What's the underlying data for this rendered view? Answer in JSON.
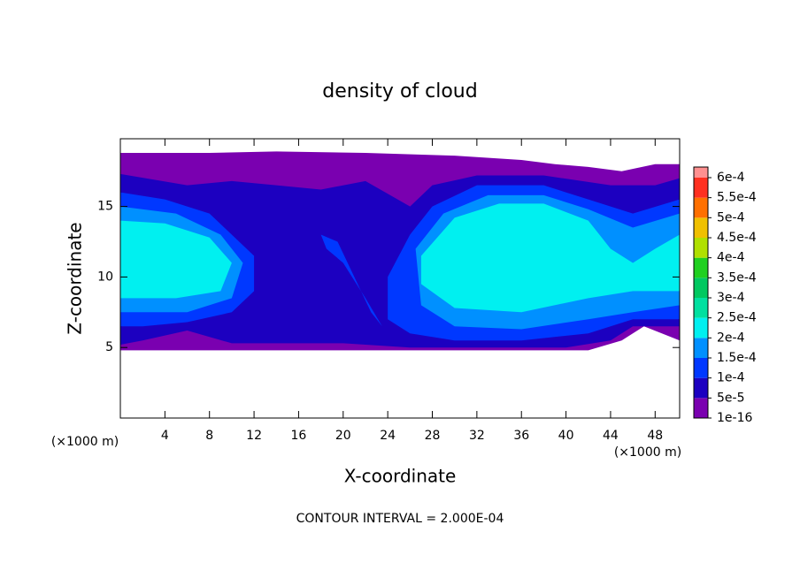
{
  "chart_data": {
    "type": "contour",
    "title": "density of cloud",
    "xlabel": "X-coordinate",
    "ylabel": "Z-coordinate",
    "x_unit_labels": [
      "(×1000 m)",
      "(×1000 m)"
    ],
    "footer": "CONTOUR INTERVAL = 2.000E-04",
    "xlim": [
      0,
      50.2
    ],
    "ylim": [
      0,
      19.8
    ],
    "xticks": [
      4,
      8,
      12,
      16,
      20,
      24,
      28,
      32,
      36,
      40,
      44,
      48
    ],
    "yticks": [
      5,
      10,
      15
    ],
    "colorbar": {
      "ticks": [
        {
          "value": 1e-16,
          "label": "1e-16"
        },
        {
          "value": 5e-05,
          "label": "5e-5"
        },
        {
          "value": 0.0001,
          "label": "1e-4"
        },
        {
          "value": 0.00015,
          "label": "1.5e-4"
        },
        {
          "value": 0.0002,
          "label": "2e-4"
        },
        {
          "value": 0.00025,
          "label": "2.5e-4"
        },
        {
          "value": 0.0003,
          "label": "3e-4"
        },
        {
          "value": 0.00035,
          "label": "3.5e-4"
        },
        {
          "value": 0.0004,
          "label": "4e-4"
        },
        {
          "value": 0.00045,
          "label": "4.5e-4"
        },
        {
          "value": 0.0005,
          "label": "5e-4"
        },
        {
          "value": 0.00055,
          "label": "5.5e-4"
        },
        {
          "value": 0.0006,
          "label": "6e-4"
        }
      ],
      "colors": [
        "#7a00b0",
        "#1c00c0",
        "#0038ff",
        "#0090ff",
        "#00f0f0",
        "#00e0a0",
        "#00c860",
        "#20d020",
        "#b0e000",
        "#f0c000",
        "#ff7000",
        "#ff3020"
      ],
      "top_color": "#ff9090"
    },
    "regions": [
      {
        "value": 1e-16,
        "points": [
          [
            0,
            18.8
          ],
          [
            8,
            18.8
          ],
          [
            14,
            18.9
          ],
          [
            22,
            18.8
          ],
          [
            30,
            18.6
          ],
          [
            36,
            18.3
          ],
          [
            39,
            18.0
          ],
          [
            42,
            17.8
          ],
          [
            45,
            17.5
          ],
          [
            48,
            18.0
          ],
          [
            50.2,
            18.0
          ],
          [
            50.2,
            5.5
          ],
          [
            47,
            6.5
          ],
          [
            45,
            5.5
          ],
          [
            42,
            4.8
          ],
          [
            30,
            4.8
          ],
          [
            20,
            4.8
          ],
          [
            10,
            4.8
          ],
          [
            0,
            4.8
          ]
        ]
      },
      {
        "value": 5e-05,
        "points": [
          [
            0,
            17.3
          ],
          [
            6,
            16.5
          ],
          [
            10,
            16.8
          ],
          [
            14,
            16.5
          ],
          [
            18,
            16.2
          ],
          [
            22,
            16.8
          ],
          [
            26,
            15
          ],
          [
            28,
            16.5
          ],
          [
            32,
            17.2
          ],
          [
            38,
            17.2
          ],
          [
            44,
            16.5
          ],
          [
            48,
            16.5
          ],
          [
            50.2,
            17
          ],
          [
            50.2,
            6.5
          ],
          [
            46,
            6.5
          ],
          [
            44,
            5.5
          ],
          [
            40,
            5.0
          ],
          [
            30,
            5.0
          ],
          [
            26,
            5.0
          ],
          [
            20,
            5.3
          ],
          [
            14,
            5.3
          ],
          [
            10,
            5.3
          ],
          [
            6,
            6.2
          ],
          [
            2,
            5.5
          ],
          [
            0,
            5.2
          ]
        ]
      },
      {
        "value": 0.0001,
        "points": [
          [
            0,
            16
          ],
          [
            4,
            15.5
          ],
          [
            8,
            14.5
          ],
          [
            10,
            13
          ],
          [
            12,
            11.5
          ],
          [
            12,
            9
          ],
          [
            10,
            7.5
          ],
          [
            6,
            6.8
          ],
          [
            2,
            6.5
          ],
          [
            0,
            6.5
          ]
        ]
      },
      {
        "value": 0.0001,
        "points": [
          [
            26,
            13
          ],
          [
            28,
            15
          ],
          [
            32,
            16.5
          ],
          [
            38,
            16.5
          ],
          [
            42,
            15.5
          ],
          [
            46,
            14.5
          ],
          [
            50.2,
            15.5
          ],
          [
            50.2,
            7
          ],
          [
            46,
            7
          ],
          [
            42,
            6
          ],
          [
            36,
            5.5
          ],
          [
            30,
            5.5
          ],
          [
            26,
            6
          ],
          [
            24,
            7
          ],
          [
            24,
            10
          ]
        ]
      },
      {
        "value": 0.0001,
        "points": [
          [
            18,
            13
          ],
          [
            19.5,
            12.5
          ],
          [
            21,
            10
          ],
          [
            22.5,
            7.5
          ],
          [
            23.5,
            6.5
          ],
          [
            22,
            8.5
          ],
          [
            20,
            11
          ],
          [
            18.5,
            12
          ]
        ]
      },
      {
        "value": 0.00015,
        "points": [
          [
            0,
            15
          ],
          [
            5,
            14.5
          ],
          [
            9,
            13
          ],
          [
            11,
            11
          ],
          [
            10,
            8.5
          ],
          [
            6,
            7.5
          ],
          [
            0,
            7.5
          ]
        ]
      },
      {
        "value": 0.00015,
        "points": [
          [
            26.5,
            12
          ],
          [
            29,
            14.5
          ],
          [
            33,
            15.8
          ],
          [
            38,
            15.8
          ],
          [
            42,
            14.8
          ],
          [
            46,
            13.5
          ],
          [
            50.2,
            14.5
          ],
          [
            50.2,
            8
          ],
          [
            46,
            7.5
          ],
          [
            42,
            7
          ],
          [
            36,
            6.3
          ],
          [
            30,
            6.5
          ],
          [
            27,
            8
          ]
        ]
      },
      {
        "value": 0.0002,
        "points": [
          [
            0,
            14
          ],
          [
            4,
            13.8
          ],
          [
            8,
            12.8
          ],
          [
            10,
            11
          ],
          [
            9,
            9
          ],
          [
            5,
            8.5
          ],
          [
            0,
            8.5
          ]
        ]
      },
      {
        "value": 0.0002,
        "points": [
          [
            27,
            11.5
          ],
          [
            30,
            14.2
          ],
          [
            34,
            15.2
          ],
          [
            38,
            15.2
          ],
          [
            42,
            14
          ],
          [
            44,
            12
          ],
          [
            46,
            11
          ],
          [
            48,
            12
          ],
          [
            50.2,
            13
          ],
          [
            50.2,
            9
          ],
          [
            46,
            9
          ],
          [
            42,
            8.5
          ],
          [
            36,
            7.5
          ],
          [
            30,
            7.8
          ],
          [
            27,
            9.5
          ]
        ]
      }
    ]
  }
}
